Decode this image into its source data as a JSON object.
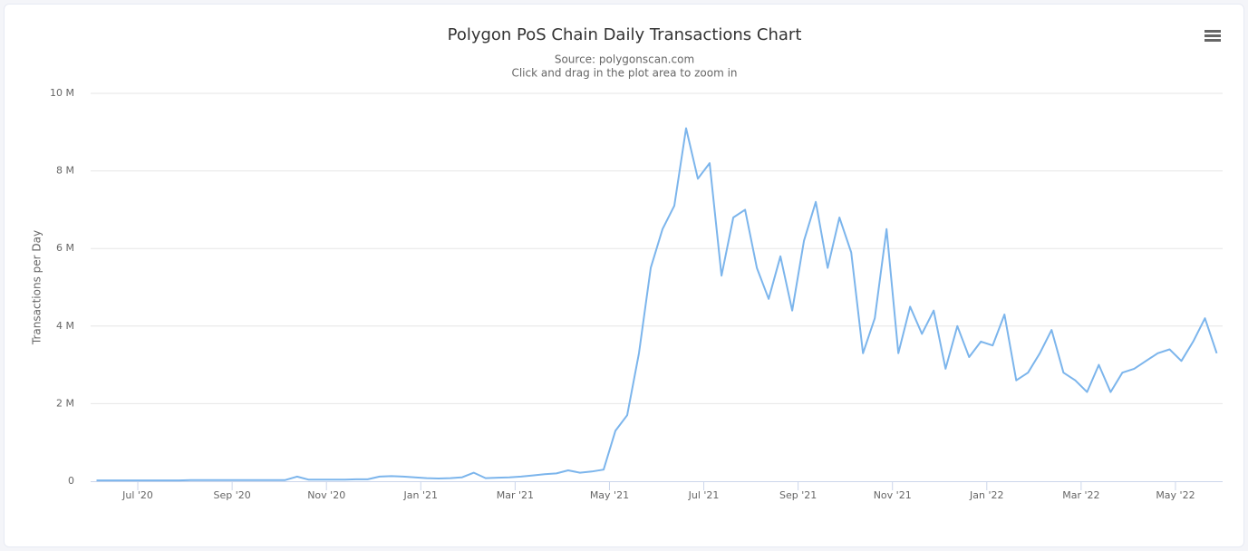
{
  "chart_data": {
    "type": "line",
    "title": "Polygon PoS Chain Daily Transactions Chart",
    "subtitle": "Source: polygonscan.com",
    "note": "Click and drag in the plot area to zoom in",
    "y_label": "Transactions per Day",
    "x": [
      "2020-06",
      "2020-06",
      "2020-06",
      "2020-06",
      "2020-07",
      "2020-07",
      "2020-07",
      "2020-07",
      "2020-08",
      "2020-08",
      "2020-08",
      "2020-08",
      "2020-09",
      "2020-09",
      "2020-09",
      "2020-09",
      "2020-10",
      "2020-10",
      "2020-10",
      "2020-10",
      "2020-11",
      "2020-11",
      "2020-11",
      "2020-11",
      "2020-12",
      "2020-12",
      "2020-12",
      "2020-12",
      "2021-01",
      "2021-01",
      "2021-01",
      "2021-01",
      "2021-02",
      "2021-02",
      "2021-02",
      "2021-02",
      "2021-03",
      "2021-03",
      "2021-03",
      "2021-03",
      "2021-04",
      "2021-04",
      "2021-04",
      "2021-04",
      "2021-05",
      "2021-05",
      "2021-05",
      "2021-05",
      "2021-06",
      "2021-06",
      "2021-06",
      "2021-06",
      "2021-07",
      "2021-07",
      "2021-07",
      "2021-07",
      "2021-08",
      "2021-08",
      "2021-08",
      "2021-08",
      "2021-09",
      "2021-09",
      "2021-09",
      "2021-09",
      "2021-10",
      "2021-10",
      "2021-10",
      "2021-10",
      "2021-11",
      "2021-11",
      "2021-11",
      "2021-11",
      "2021-12",
      "2021-12",
      "2021-12",
      "2021-12",
      "2022-01",
      "2022-01",
      "2022-01",
      "2022-01",
      "2022-02",
      "2022-02",
      "2022-02",
      "2022-02",
      "2022-03",
      "2022-03",
      "2022-03",
      "2022-03",
      "2022-04",
      "2022-04",
      "2022-04",
      "2022-04",
      "2022-05",
      "2022-05",
      "2022-05",
      "2022-05"
    ],
    "series": [
      {
        "name": "Transactions per Day",
        "color": "#7cb5ec",
        "values": [
          20000,
          20000,
          20000,
          20000,
          20000,
          20000,
          20000,
          20000,
          30000,
          30000,
          30000,
          30000,
          30000,
          30000,
          30000,
          30000,
          30000,
          120000,
          40000,
          40000,
          40000,
          40000,
          50000,
          50000,
          120000,
          130000,
          120000,
          100000,
          80000,
          70000,
          80000,
          100000,
          220000,
          80000,
          90000,
          100000,
          120000,
          150000,
          180000,
          200000,
          280000,
          220000,
          250000,
          300000,
          1300000,
          1700000,
          3300000,
          5500000,
          6500000,
          7100000,
          9100000,
          7800000,
          8200000,
          5300000,
          6800000,
          7000000,
          5500000,
          4700000,
          5800000,
          4400000,
          6200000,
          7200000,
          5500000,
          6800000,
          5900000,
          3300000,
          4200000,
          6500000,
          3300000,
          4500000,
          3800000,
          4400000,
          2900000,
          4000000,
          3200000,
          3600000,
          3500000,
          4300000,
          2600000,
          2800000,
          3300000,
          3900000,
          2800000,
          2600000,
          2300000,
          3000000,
          2300000,
          2800000,
          2900000,
          3100000,
          3300000,
          3400000,
          3100000,
          3600000,
          4200000,
          3300000
        ]
      }
    ],
    "xlim": [
      "2020-06",
      "2022-05"
    ],
    "xticks": [
      {
        "value": "2020-07",
        "label": "Jul '20"
      },
      {
        "value": "2020-09",
        "label": "Sep '20"
      },
      {
        "value": "2020-11",
        "label": "Nov '20"
      },
      {
        "value": "2021-01",
        "label": "Jan '21"
      },
      {
        "value": "2021-03",
        "label": "Mar '21"
      },
      {
        "value": "2021-05",
        "label": "May '21"
      },
      {
        "value": "2021-07",
        "label": "Jul '21"
      },
      {
        "value": "2021-09",
        "label": "Sep '21"
      },
      {
        "value": "2021-11",
        "label": "Nov '21"
      },
      {
        "value": "2022-01",
        "label": "Jan '22"
      },
      {
        "value": "2022-03",
        "label": "Mar '22"
      },
      {
        "value": "2022-05",
        "label": "May '22"
      }
    ],
    "ylim": [
      0,
      10000000
    ],
    "yticks": [
      0,
      {
        "value": 2000000,
        "label": "2 M"
      },
      {
        "value": 4000000,
        "label": "4 M"
      },
      {
        "value": 6000000,
        "label": "6 M"
      },
      {
        "value": 8000000,
        "label": "8 M"
      },
      {
        "value": 10000000,
        "label": "10 M"
      }
    ],
    "grid": true
  }
}
